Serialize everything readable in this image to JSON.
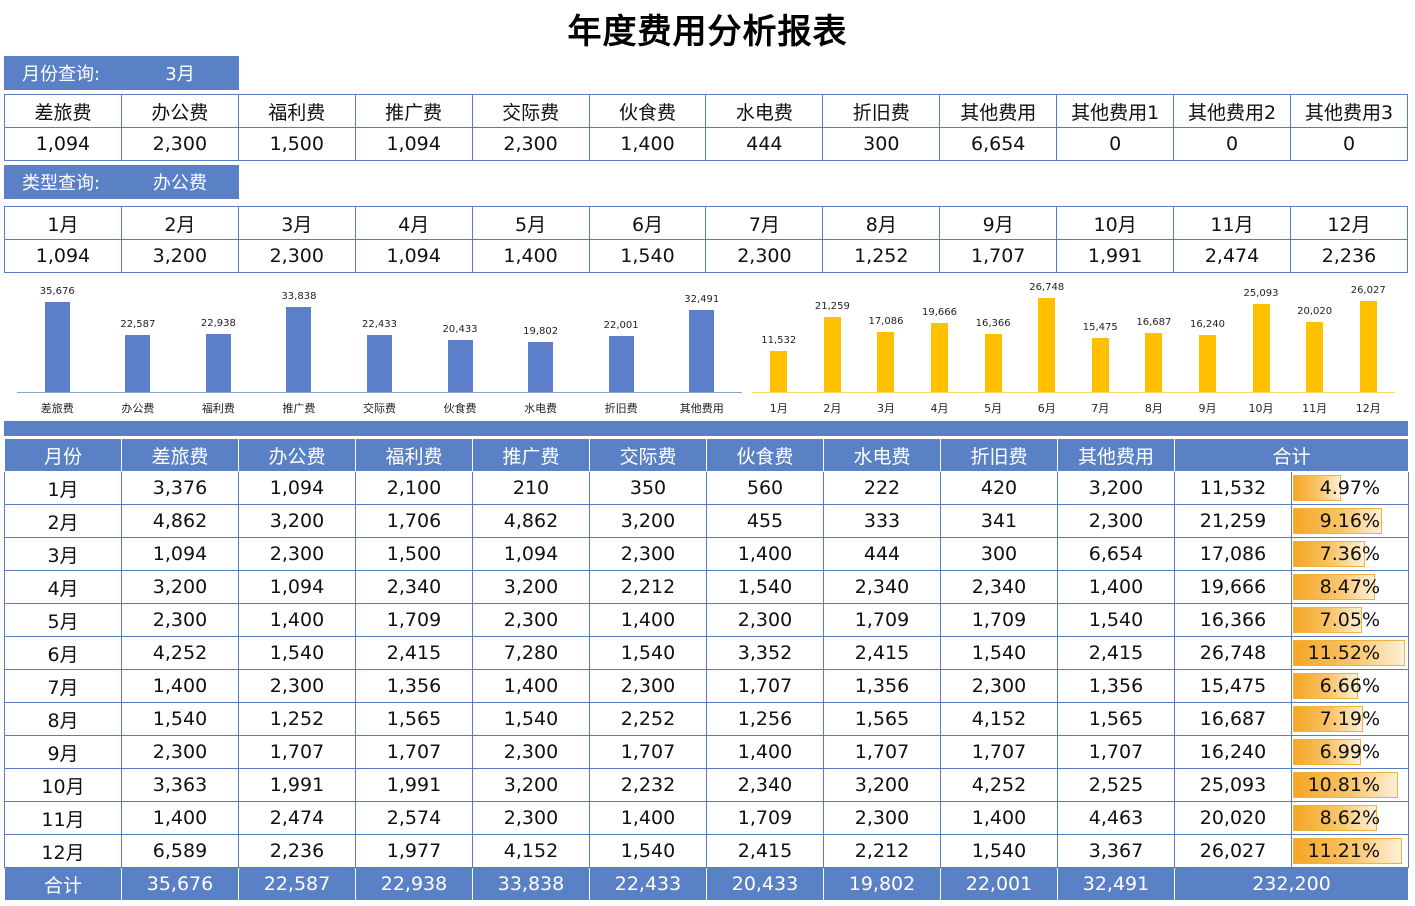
{
  "title": "年度费用分析报表",
  "month_query": {
    "label": "月份查询:",
    "value": "3月"
  },
  "month_lookup": {
    "headers": [
      "差旅费",
      "办公费",
      "福利费",
      "推广费",
      "交际费",
      "伙食费",
      "水电费",
      "折旧费",
      "其他费用",
      "其他费用1",
      "其他费用2",
      "其他费用3"
    ],
    "values": [
      "1,094",
      "2,300",
      "1,500",
      "1,094",
      "2,300",
      "1,400",
      "444",
      "300",
      "6,654",
      "0",
      "0",
      "0"
    ]
  },
  "type_query": {
    "label": "类型查询:",
    "value": "办公费"
  },
  "type_lookup": {
    "headers": [
      "1月",
      "2月",
      "3月",
      "4月",
      "5月",
      "6月",
      "7月",
      "8月",
      "9月",
      "10月",
      "11月",
      "12月"
    ],
    "values": [
      "1,094",
      "3,200",
      "2,300",
      "1,094",
      "1,400",
      "1,540",
      "2,300",
      "1,252",
      "1,707",
      "1,991",
      "2,474",
      "2,236"
    ]
  },
  "colors": {
    "header_blue": "#5a80c6",
    "category_bar": "#5b7fc8",
    "month_bar": "#ffc000",
    "grid": "#5a7cbf"
  },
  "chart_data": [
    {
      "type": "bar",
      "title": "",
      "categories": [
        "差旅费",
        "办公费",
        "福利费",
        "推广费",
        "交际费",
        "伙食费",
        "水电费",
        "折旧费",
        "其他费用"
      ],
      "values": [
        35676,
        22587,
        22938,
        33838,
        22433,
        20433,
        19802,
        22001,
        32491
      ],
      "labels": [
        "35,676",
        "22,587",
        "22,938",
        "33,838",
        "22,433",
        "20,433",
        "19,802",
        "22,001",
        "32,491"
      ],
      "xlabel": "",
      "ylabel": "",
      "grid": false,
      "legend": "none",
      "color": "#5b7fc8"
    },
    {
      "type": "bar",
      "title": "",
      "categories": [
        "1月",
        "2月",
        "3月",
        "4月",
        "5月",
        "6月",
        "7月",
        "8月",
        "9月",
        "10月",
        "11月",
        "12月"
      ],
      "values": [
        11532,
        21259,
        17086,
        19666,
        16366,
        26748,
        15475,
        16687,
        16240,
        25093,
        20020,
        26027
      ],
      "labels": [
        "11,532",
        "21,259",
        "17,086",
        "19,666",
        "16,366",
        "26,748",
        "15,475",
        "16,687",
        "16,240",
        "25,093",
        "20,020",
        "26,027"
      ],
      "xlabel": "",
      "ylabel": "",
      "grid": false,
      "legend": "none",
      "color": "#ffc000"
    }
  ],
  "main_table": {
    "headers": [
      "月份",
      "差旅费",
      "办公费",
      "福利费",
      "推广费",
      "交际费",
      "伙食费",
      "水电费",
      "折旧费",
      "其他费用",
      "合计"
    ],
    "rows": [
      {
        "month": "1月",
        "cells": [
          "3,376",
          "1,094",
          "2,100",
          "210",
          "350",
          "560",
          "222",
          "420",
          "3,200"
        ],
        "total": "11,532",
        "pct": "4.97%",
        "pct_value": 4.97
      },
      {
        "month": "2月",
        "cells": [
          "4,862",
          "3,200",
          "1,706",
          "4,862",
          "3,200",
          "455",
          "333",
          "341",
          "2,300"
        ],
        "total": "21,259",
        "pct": "9.16%",
        "pct_value": 9.16
      },
      {
        "month": "3月",
        "cells": [
          "1,094",
          "2,300",
          "1,500",
          "1,094",
          "2,300",
          "1,400",
          "444",
          "300",
          "6,654"
        ],
        "total": "17,086",
        "pct": "7.36%",
        "pct_value": 7.36
      },
      {
        "month": "4月",
        "cells": [
          "3,200",
          "1,094",
          "2,340",
          "3,200",
          "2,212",
          "1,540",
          "2,340",
          "2,340",
          "1,400"
        ],
        "total": "19,666",
        "pct": "8.47%",
        "pct_value": 8.47
      },
      {
        "month": "5月",
        "cells": [
          "2,300",
          "1,400",
          "1,709",
          "2,300",
          "1,400",
          "2,300",
          "1,709",
          "1,709",
          "1,540"
        ],
        "total": "16,366",
        "pct": "7.05%",
        "pct_value": 7.05
      },
      {
        "month": "6月",
        "cells": [
          "4,252",
          "1,540",
          "2,415",
          "7,280",
          "1,540",
          "3,352",
          "2,415",
          "1,540",
          "2,415"
        ],
        "total": "26,748",
        "pct": "11.52%",
        "pct_value": 11.52
      },
      {
        "month": "7月",
        "cells": [
          "1,400",
          "2,300",
          "1,356",
          "1,400",
          "2,300",
          "1,707",
          "1,356",
          "2,300",
          "1,356"
        ],
        "total": "15,475",
        "pct": "6.66%",
        "pct_value": 6.66
      },
      {
        "month": "8月",
        "cells": [
          "1,540",
          "1,252",
          "1,565",
          "1,540",
          "2,252",
          "1,256",
          "1,565",
          "4,152",
          "1,565"
        ],
        "total": "16,687",
        "pct": "7.19%",
        "pct_value": 7.19
      },
      {
        "month": "9月",
        "cells": [
          "2,300",
          "1,707",
          "1,707",
          "2,300",
          "1,707",
          "1,400",
          "1,707",
          "1,707",
          "1,707"
        ],
        "total": "16,240",
        "pct": "6.99%",
        "pct_value": 6.99
      },
      {
        "month": "10月",
        "cells": [
          "3,363",
          "1,991",
          "1,991",
          "3,200",
          "2,232",
          "2,340",
          "3,200",
          "4,252",
          "2,525"
        ],
        "total": "25,093",
        "pct": "10.81%",
        "pct_value": 10.81
      },
      {
        "month": "11月",
        "cells": [
          "1,400",
          "2,474",
          "2,574",
          "2,300",
          "1,400",
          "1,709",
          "2,300",
          "1,400",
          "4,463"
        ],
        "total": "20,020",
        "pct": "8.62%",
        "pct_value": 8.62
      },
      {
        "month": "12月",
        "cells": [
          "6,589",
          "2,236",
          "1,977",
          "4,152",
          "1,540",
          "2,415",
          "2,212",
          "1,540",
          "3,367"
        ],
        "total": "26,027",
        "pct": "11.21%",
        "pct_value": 11.21
      }
    ],
    "total_row": {
      "label": "合计",
      "cells": [
        "35,676",
        "22,587",
        "22,938",
        "33,838",
        "22,433",
        "20,433",
        "19,802",
        "22,001",
        "32,491"
      ],
      "grand_total": "232,200"
    }
  }
}
